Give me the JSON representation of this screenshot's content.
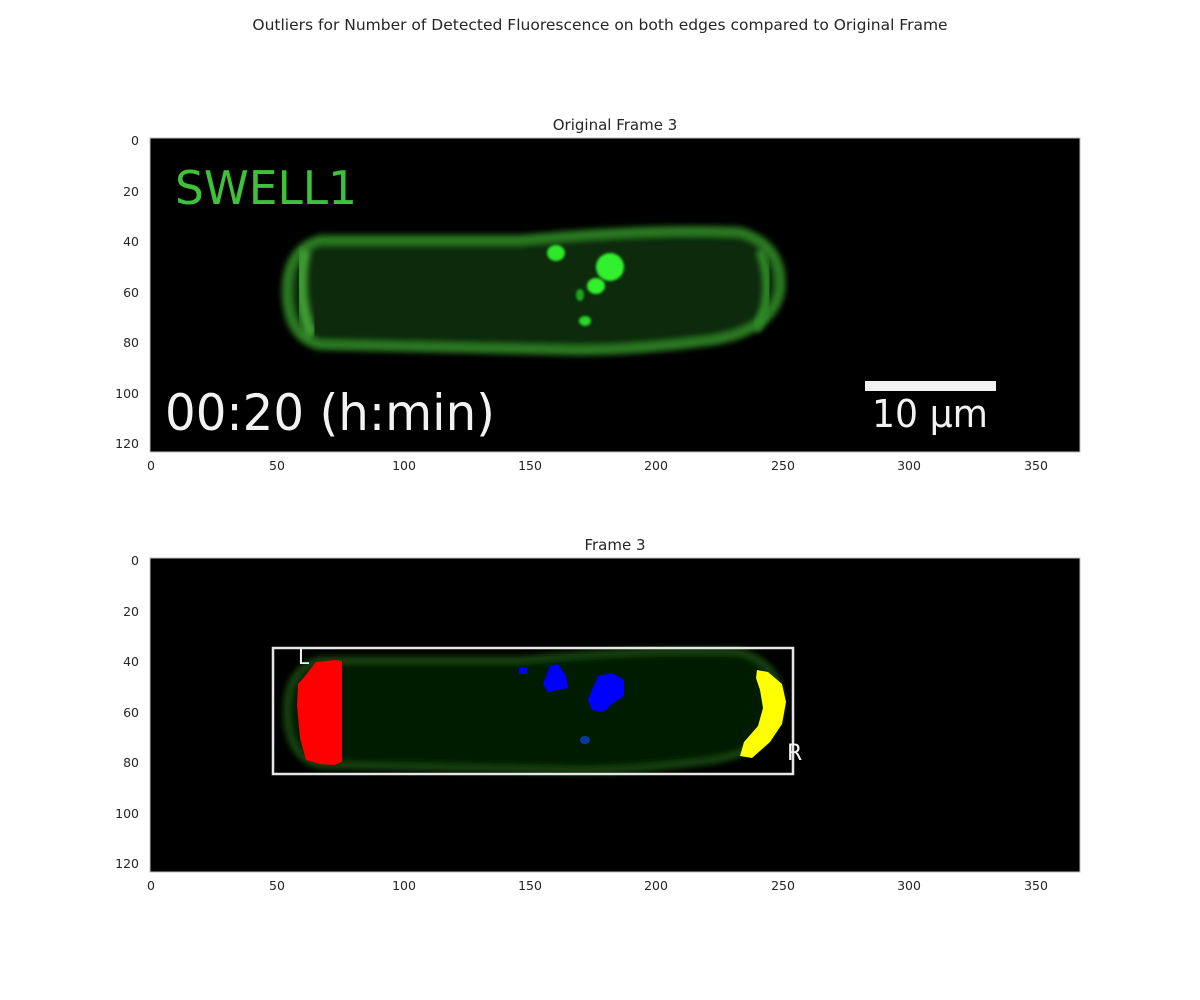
{
  "figure_title": "Outliers for Number of Detected Fluorescence on both edges compared to Original Frame",
  "panels": [
    {
      "title": "Original Frame 3",
      "xticks": [
        "0",
        "50",
        "100",
        "150",
        "200",
        "250",
        "300",
        "350"
      ],
      "yticks": [
        "0",
        "20",
        "40",
        "60",
        "80",
        "100",
        "120"
      ],
      "overlay": {
        "label": "SWELL1",
        "timestamp": "00:20 (h:min)",
        "scalebar": "10 µm"
      }
    },
    {
      "title": "Frame 3",
      "xticks": [
        "0",
        "50",
        "100",
        "150",
        "200",
        "250",
        "300",
        "350"
      ],
      "yticks": [
        "0",
        "20",
        "40",
        "60",
        "80",
        "100",
        "120"
      ],
      "box_labels": {
        "left": "L",
        "right": "R"
      }
    }
  ],
  "colors": {
    "left_edge": "#ff0000",
    "right_edge": "#ffff00",
    "interior": "#0000ff",
    "cell": "#1e5c1a"
  }
}
